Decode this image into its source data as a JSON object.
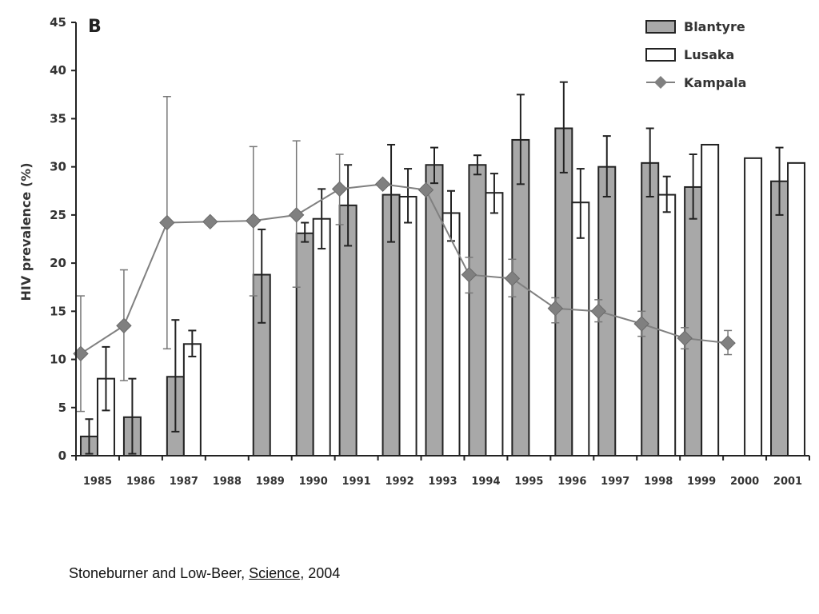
{
  "chart_data": {
    "type": "bar",
    "panel_label": "B",
    "ylabel": "HIV prevalence (%)",
    "ylim": [
      0,
      45
    ],
    "yticks": [
      0,
      5,
      10,
      15,
      20,
      25,
      30,
      35,
      40,
      45
    ],
    "categories": [
      "1985",
      "1986",
      "1987",
      "1988",
      "1989",
      "1990",
      "1991",
      "1992",
      "1993",
      "1994",
      "1995",
      "1996",
      "1997",
      "1998",
      "1999",
      "2000",
      "2001"
    ],
    "legend_position": "top-right",
    "series": [
      {
        "name": "Blantyre",
        "kind": "bar",
        "fill": "#a8a8a8",
        "values": [
          2,
          4,
          8.2,
          null,
          18.8,
          23.1,
          26,
          27.1,
          30.2,
          30.2,
          32.8,
          34,
          30,
          30.4,
          27.9,
          null,
          28.5
        ],
        "err_low": [
          0.2,
          0.2,
          2.5,
          null,
          13.8,
          22.2,
          21.8,
          22.2,
          28.3,
          29.2,
          28.2,
          29.4,
          26.9,
          26.9,
          24.6,
          null,
          25
        ],
        "err_high": [
          3.8,
          8,
          14.1,
          null,
          23.5,
          24.2,
          30.2,
          32.3,
          32,
          31.2,
          37.5,
          38.8,
          33.2,
          34,
          31.3,
          null,
          32
        ]
      },
      {
        "name": "Lusaka",
        "kind": "bar",
        "fill": "#ffffff",
        "values": [
          8,
          null,
          11.6,
          null,
          null,
          24.6,
          null,
          26.9,
          25.2,
          27.3,
          null,
          26.3,
          null,
          27.1,
          32.3,
          30.9,
          30.4
        ],
        "err_low": [
          4.7,
          null,
          10.3,
          null,
          null,
          21.5,
          null,
          24.2,
          22.3,
          25.2,
          null,
          22.6,
          null,
          25.3,
          null,
          null,
          null
        ],
        "err_high": [
          11.3,
          null,
          13,
          null,
          null,
          27.7,
          null,
          29.8,
          27.5,
          29.3,
          null,
          29.8,
          null,
          29,
          null,
          null,
          null
        ]
      },
      {
        "name": "Kampala",
        "kind": "line",
        "color": "#808080",
        "values": [
          10.6,
          13.5,
          24.2,
          24.3,
          24.4,
          25,
          27.7,
          28.2,
          27.6,
          18.8,
          18.4,
          15.3,
          15,
          13.7,
          12.2,
          11.7,
          null
        ],
        "err_low": [
          4.6,
          7.8,
          11.1,
          null,
          16.6,
          17.5,
          24,
          null,
          null,
          16.9,
          16.5,
          13.8,
          13.9,
          12.4,
          11.1,
          10.5,
          null
        ],
        "err_high": [
          16.6,
          19.3,
          37.3,
          null,
          32.1,
          32.7,
          31.3,
          null,
          null,
          20.6,
          20.4,
          16.4,
          16.2,
          15,
          13.3,
          13,
          null
        ]
      }
    ]
  },
  "citation": {
    "authors": "Stoneburner and Low-Beer, ",
    "journal": "Science",
    "year": ", 2004"
  }
}
